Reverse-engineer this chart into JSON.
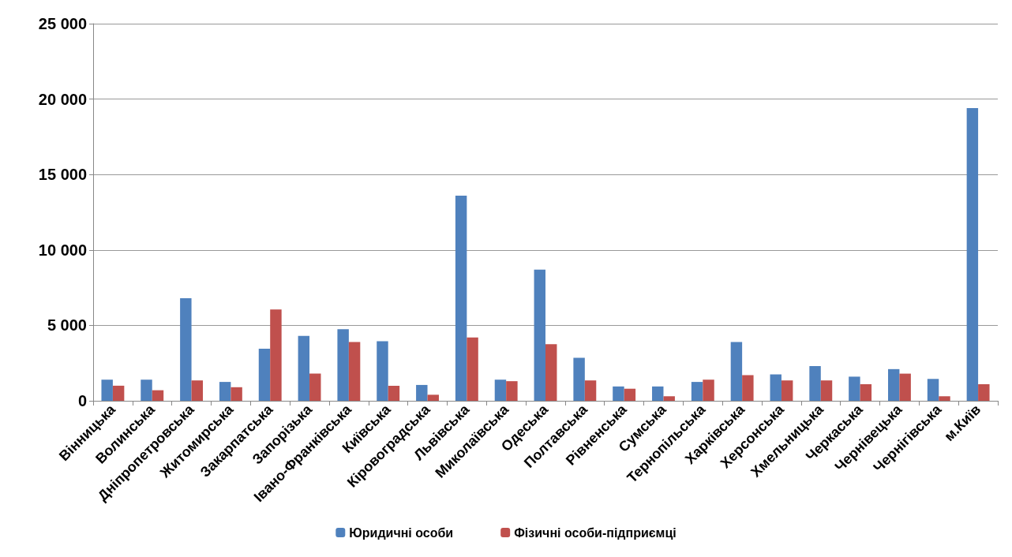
{
  "chart_data": {
    "type": "bar",
    "categories": [
      "Вінницька",
      "Волинська",
      "Дніпропетровська",
      "Житомирська",
      "Закарпатська",
      "Запорізька",
      "Івано-Франківська",
      "Київська",
      "Кіровоградська",
      "Львівська",
      "Миколаївська",
      "Одеська",
      "Полтавська",
      "Рівненська",
      "Сумська",
      "Тернопільська",
      "Харківська",
      "Херсонська",
      "Хмельницька",
      "Черкаська",
      "Чернівецька",
      "Чернігівська",
      "м.Київ"
    ],
    "series": [
      {
        "name": "Юридичні особи",
        "color": "#4f81bd",
        "values": [
          1400,
          1400,
          6800,
          1250,
          3450,
          4300,
          4750,
          3950,
          1050,
          13600,
          1400,
          8700,
          2850,
          950,
          950,
          1250,
          3900,
          1750,
          2300,
          1600,
          2100,
          1450,
          19400
        ]
      },
      {
        "name": "Фізичні особи-підприємці",
        "color": "#c0504d",
        "values": [
          1000,
          700,
          1350,
          900,
          6050,
          1800,
          3900,
          1000,
          400,
          4200,
          1300,
          3750,
          1350,
          800,
          300,
          1400,
          1700,
          1350,
          1350,
          1100,
          1800,
          300,
          1100
        ]
      }
    ],
    "ylim": [
      0,
      25000
    ],
    "yticks": [
      {
        "value": 0,
        "label": "0"
      },
      {
        "value": 5000,
        "label": "5 000"
      },
      {
        "value": 10000,
        "label": "10 000"
      },
      {
        "value": 15000,
        "label": "15 000"
      },
      {
        "value": 20000,
        "label": "20 000"
      },
      {
        "value": 25000,
        "label": "25 000"
      }
    ],
    "grid": "y",
    "legend": "bottom"
  }
}
